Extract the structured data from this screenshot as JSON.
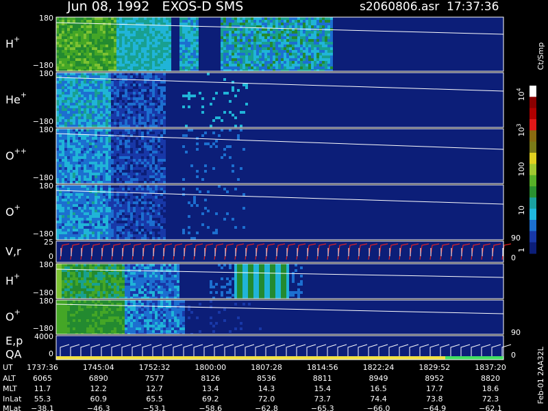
{
  "header": {
    "title": "Jun 08, 1992   EXOS-D SMS",
    "file": "s2060806.asr  17:37:36"
  },
  "panels": [
    {
      "label": {
        "base": "H",
        "sup": "+"
      },
      "ticks": [
        "180",
        "−180"
      ]
    },
    {
      "label": {
        "base": "He",
        "sup": "+"
      },
      "ticks": [
        "180",
        "−180"
      ]
    },
    {
      "label": {
        "base": "O",
        "sup": "++"
      },
      "ticks": [
        "180",
        "−180"
      ]
    },
    {
      "label": {
        "base": "O",
        "sup": "+"
      },
      "ticks": [
        "180",
        "−180"
      ],
      "right": [
        "90"
      ]
    },
    {
      "label": {
        "base": "V,r"
      },
      "ticks": [
        "25",
        "0"
      ],
      "right": [
        "0"
      ]
    },
    {
      "label": {
        "base": "H",
        "sup": "+"
      },
      "ticks": [
        "180",
        "−180"
      ]
    },
    {
      "label": {
        "base": "O",
        "sup": "+"
      },
      "ticks": [
        "180",
        "−180"
      ],
      "right": [
        "90"
      ]
    },
    {
      "label": {
        "base": "E,p"
      },
      "label2": "QA",
      "ticks": [
        "4000",
        "0"
      ],
      "right": [
        "0"
      ]
    }
  ],
  "colorbar": {
    "unit": "Ct/Smp",
    "labels": [
      {
        "base": "10",
        "sup": "4"
      },
      {
        "base": "10",
        "sup": "3"
      },
      {
        "base": "100"
      },
      {
        "base": "10"
      },
      {
        "base": "1"
      }
    ]
  },
  "table": {
    "rows": [
      {
        "label": "UT",
        "values": [
          "1737:36",
          "1745:04",
          "1752:32",
          "1800:00",
          "1807:28",
          "1814:56",
          "1822:24",
          "1829:52",
          "1837:20"
        ]
      },
      {
        "label": "ALT",
        "values": [
          "6065",
          "6890",
          "7577",
          "8126",
          "8536",
          "8811",
          "8949",
          "8952",
          "8820"
        ]
      },
      {
        "label": "MLT",
        "values": [
          "11.7",
          "12.2",
          "12.7",
          "13.4",
          "14.3",
          "15.4",
          "16.5",
          "17.7",
          "18.6"
        ]
      },
      {
        "label": "InLat",
        "values": [
          "55.3",
          "60.9",
          "65.5",
          "69.2",
          "72.0",
          "73.7",
          "74.4",
          "73.8",
          "72.3"
        ]
      },
      {
        "label": "MLat",
        "values": [
          "−38.1",
          "−46.3",
          "−53.1",
          "−58.6",
          "−62.8",
          "−65.3",
          "−66.0",
          "−64.9",
          "−62.1"
        ]
      }
    ]
  },
  "side": "Feb-01 2AA32L"
}
